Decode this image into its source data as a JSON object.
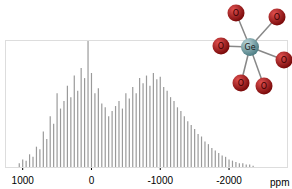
{
  "chart_data": {
    "type": "stem",
    "x": [
      1050,
      1000,
      950,
      900,
      850,
      800,
      750,
      700,
      650,
      600,
      550,
      500,
      450,
      400,
      350,
      300,
      250,
      200,
      150,
      100,
      50,
      0,
      -50,
      -100,
      -150,
      -200,
      -250,
      -300,
      -350,
      -400,
      -450,
      -500,
      -550,
      -600,
      -650,
      -700,
      -750,
      -800,
      -850,
      -900,
      -950,
      -1000,
      -1050,
      -1100,
      -1150,
      -1200,
      -1250,
      -1300,
      -1350,
      -1400,
      -1450,
      -1500,
      -1550,
      -1600,
      -1650,
      -1700,
      -1750,
      -1800,
      -1850,
      -1900,
      -1950,
      -2000,
      -2050,
      -2100,
      -2150,
      -2200,
      -2250,
      -2300,
      -2350
    ],
    "values": [
      3,
      6,
      5,
      10,
      8,
      16,
      14,
      28,
      22,
      40,
      34,
      58,
      46,
      52,
      64,
      55,
      72,
      60,
      78,
      70,
      100,
      74,
      58,
      62,
      50,
      47,
      40,
      44,
      48,
      52,
      46,
      58,
      54,
      63,
      58,
      70,
      66,
      72,
      64,
      74,
      69,
      71,
      63,
      60,
      55,
      52,
      47,
      44,
      40,
      36,
      33,
      30,
      26,
      24,
      20,
      18,
      15,
      13,
      11,
      9,
      8,
      6,
      5,
      4,
      3,
      3,
      2,
      2,
      1
    ],
    "color": "#9a9a9a",
    "xlabel": "ppm",
    "xlim": [
      1250,
      -2850
    ],
    "xticks": [
      1000,
      0,
      -1000,
      -2000
    ],
    "ylim": [
      0,
      100
    ],
    "tick_labels": "x",
    "grid": false,
    "annotations": [
      "Ge",
      "O",
      "O",
      "O",
      "O",
      "O",
      "O"
    ]
  }
}
